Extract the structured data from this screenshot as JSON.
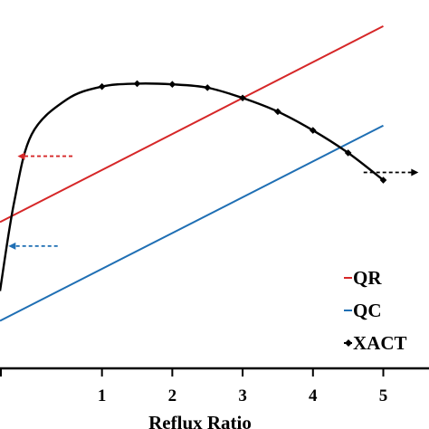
{
  "chart_data": {
    "type": "line",
    "title": "",
    "xlabel": "Reflux Ratio",
    "ylabel": "",
    "xlim": [
      -0.45,
      5.65
    ],
    "ylim": [
      0,
      1
    ],
    "x_ticks": [
      "1",
      "2",
      "3",
      "4",
      "5"
    ],
    "tick_values": [
      1,
      2,
      3,
      4,
      5
    ],
    "grid": false,
    "legend_position": "bottom-right",
    "series": [
      {
        "name": "QR",
        "color": "#d62728",
        "marker": "none",
        "x": [
          -0.45,
          5.0
        ],
        "y": [
          0.397,
          0.929
        ]
      },
      {
        "name": "QC",
        "color": "#1f6fb4",
        "marker": "none",
        "x": [
          -0.45,
          5.0
        ],
        "y": [
          0.129,
          0.659
        ]
      },
      {
        "name": "XACT",
        "color": "#000000",
        "marker": "diamond",
        "x": [
          -0.45,
          -0.25,
          0,
          0.5,
          1.0,
          1.5,
          2.0,
          2.5,
          3.0,
          3.5,
          4.0,
          4.5,
          5.0
        ],
        "y": [
          0.21,
          0.45,
          0.635,
          0.73,
          0.765,
          0.773,
          0.771,
          0.762,
          0.734,
          0.697,
          0.646,
          0.585,
          0.511
        ],
        "marked_points": [
          1.0,
          1.5,
          2.0,
          2.5,
          3.0,
          3.5,
          4.0,
          4.5,
          5.0
        ]
      }
    ],
    "annotations": [
      {
        "type": "dashed-arrow",
        "direction": "left",
        "color": "#d62728",
        "x": [
          0.58,
          -0.2
        ],
        "y": 0.576
      },
      {
        "type": "dashed-arrow",
        "direction": "left",
        "color": "#1f6fb4",
        "x": [
          0.37,
          -0.33
        ],
        "y": 0.332
      },
      {
        "type": "dashed-arrow",
        "direction": "right",
        "color": "#000000",
        "x": [
          4.72,
          5.5
        ],
        "y": 0.532
      }
    ]
  }
}
